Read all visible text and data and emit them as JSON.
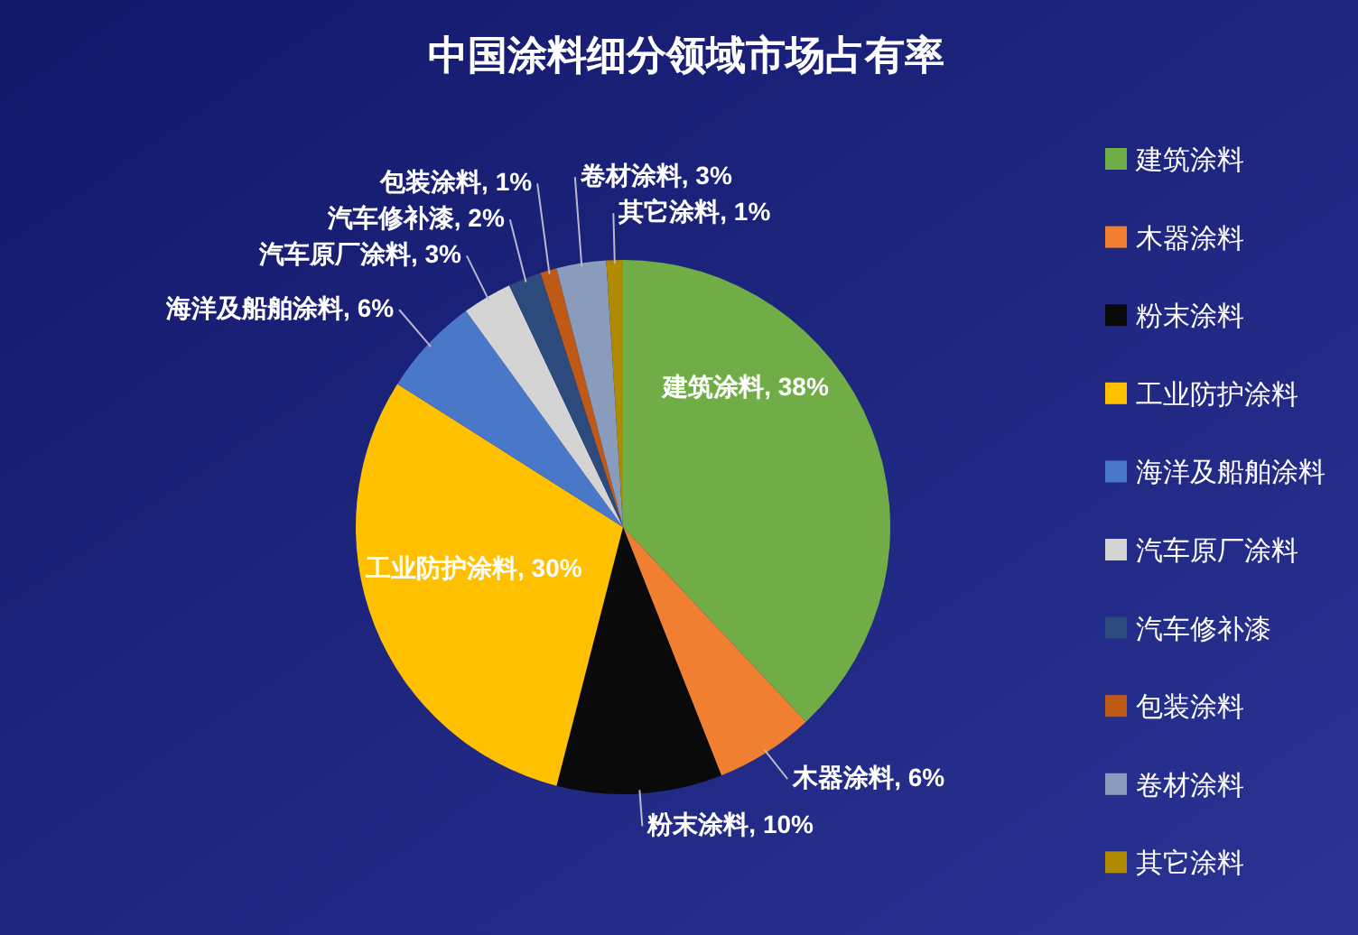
{
  "chart_data": {
    "type": "pie",
    "title": "中国涂料细分领域市场占有率",
    "categories": [
      "建筑涂料",
      "木器涂料",
      "粉末涂料",
      "工业防护涂料",
      "海洋及船舶涂料",
      "汽车原厂涂料",
      "汽车修补漆",
      "包装涂料",
      "卷材涂料",
      "其它涂料"
    ],
    "values": [
      38,
      6,
      10,
      30,
      6,
      3,
      2,
      1,
      3,
      1
    ],
    "colors": [
      "#70ad47",
      "#f07f32",
      "#0a0a0a",
      "#ffc000",
      "#4a78c8",
      "#d4d4d4",
      "#2c4a7c",
      "#bf5a16",
      "#8a9cbc",
      "#b08a00"
    ],
    "value_labels": [
      "建筑涂料, 38%",
      "木器涂料, 6%",
      "粉末涂料, 10%",
      "工业防护涂料, 30%",
      "海洋及船舶涂料, 6%",
      "汽车原厂涂料, 3%",
      "汽车修补漆, 2%",
      "包装涂料, 1%",
      "卷材涂料, 3%",
      "其它涂料, 1%"
    ],
    "legend": "right"
  }
}
